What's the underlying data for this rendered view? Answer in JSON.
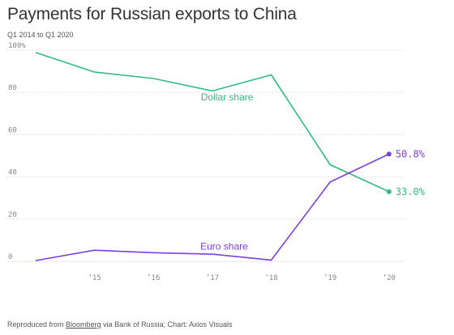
{
  "header": {
    "title": "Payments for Russian exports to China",
    "subtitle": "Q1 2014 to Q1 2020"
  },
  "footer": {
    "prefix": "Reproduced from ",
    "link": "Bloomberg",
    "suffix": " via Bank of Russia; Chart: Axios Visuals"
  },
  "chart_data": {
    "type": "line",
    "title": "Payments for Russian exports to China",
    "subtitle": "Q1 2014 to Q1 2020",
    "xlabel": "",
    "ylabel": "",
    "xlim": [
      2014,
      2020.25
    ],
    "ylim": [
      0,
      100
    ],
    "x_ticks": [
      {
        "value": 2015,
        "label": "’15"
      },
      {
        "value": 2016,
        "label": "’16"
      },
      {
        "value": 2017,
        "label": "’17"
      },
      {
        "value": 2018,
        "label": "’18"
      },
      {
        "value": 2019,
        "label": "’19"
      },
      {
        "value": 2020,
        "label": "’20"
      }
    ],
    "y_ticks": [
      {
        "value": 0,
        "label": "0"
      },
      {
        "value": 20,
        "label": "20"
      },
      {
        "value": 40,
        "label": "40"
      },
      {
        "value": 60,
        "label": "60"
      },
      {
        "value": 80,
        "label": "80"
      },
      {
        "value": 100,
        "label": "100%"
      }
    ],
    "grid": "horizontal",
    "series": [
      {
        "name": "Dollar share",
        "color": "#2ebd7f",
        "x": [
          2014,
          2015,
          2016,
          2017,
          2018,
          2019,
          2020
        ],
        "values": [
          98.9,
          89.6,
          86.6,
          80.7,
          88.3,
          45.8,
          33.0
        ],
        "end_label": "33.0%"
      },
      {
        "name": "Euro share",
        "color": "#7b3fe4",
        "x": [
          2014,
          2015,
          2016,
          2017,
          2018,
          2019,
          2020
        ],
        "values": [
          0.4,
          5.3,
          4.1,
          3.4,
          0.6,
          37.6,
          50.8
        ],
        "end_label": "50.8%"
      }
    ]
  }
}
